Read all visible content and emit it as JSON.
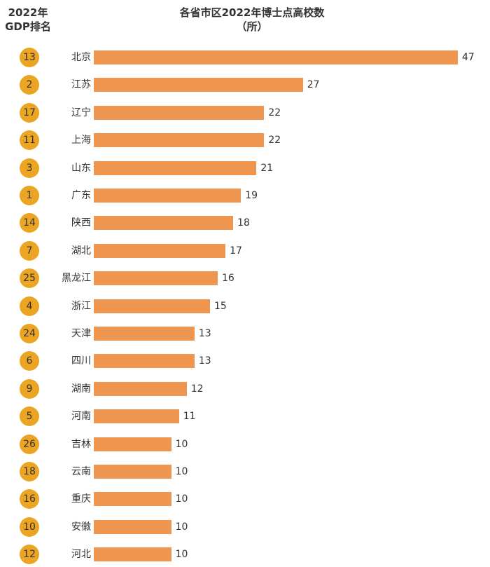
{
  "chart_data": {
    "type": "bar",
    "orientation": "horizontal",
    "title": "各省市区2022年博士点高校数",
    "subtitle": "（所）",
    "rank_header": [
      "2022年",
      "GDP排名"
    ],
    "categories": [
      "北京",
      "江苏",
      "辽宁",
      "上海",
      "山东",
      "广东",
      "陕西",
      "湖北",
      "黑龙江",
      "浙江",
      "天津",
      "四川",
      "湖南",
      "河南",
      "吉林",
      "云南",
      "重庆",
      "安徽",
      "河北"
    ],
    "values": [
      47,
      27,
      22,
      22,
      21,
      19,
      18,
      17,
      16,
      15,
      13,
      13,
      12,
      11,
      10,
      10,
      10,
      10,
      10
    ],
    "gdp_rank": [
      13,
      2,
      17,
      11,
      3,
      1,
      14,
      7,
      25,
      4,
      24,
      6,
      9,
      5,
      26,
      18,
      16,
      10,
      12
    ],
    "xlim": [
      0,
      47
    ],
    "grid": false,
    "colors": {
      "bar": "#ee9550",
      "rank_circle": "#eba523"
    }
  }
}
